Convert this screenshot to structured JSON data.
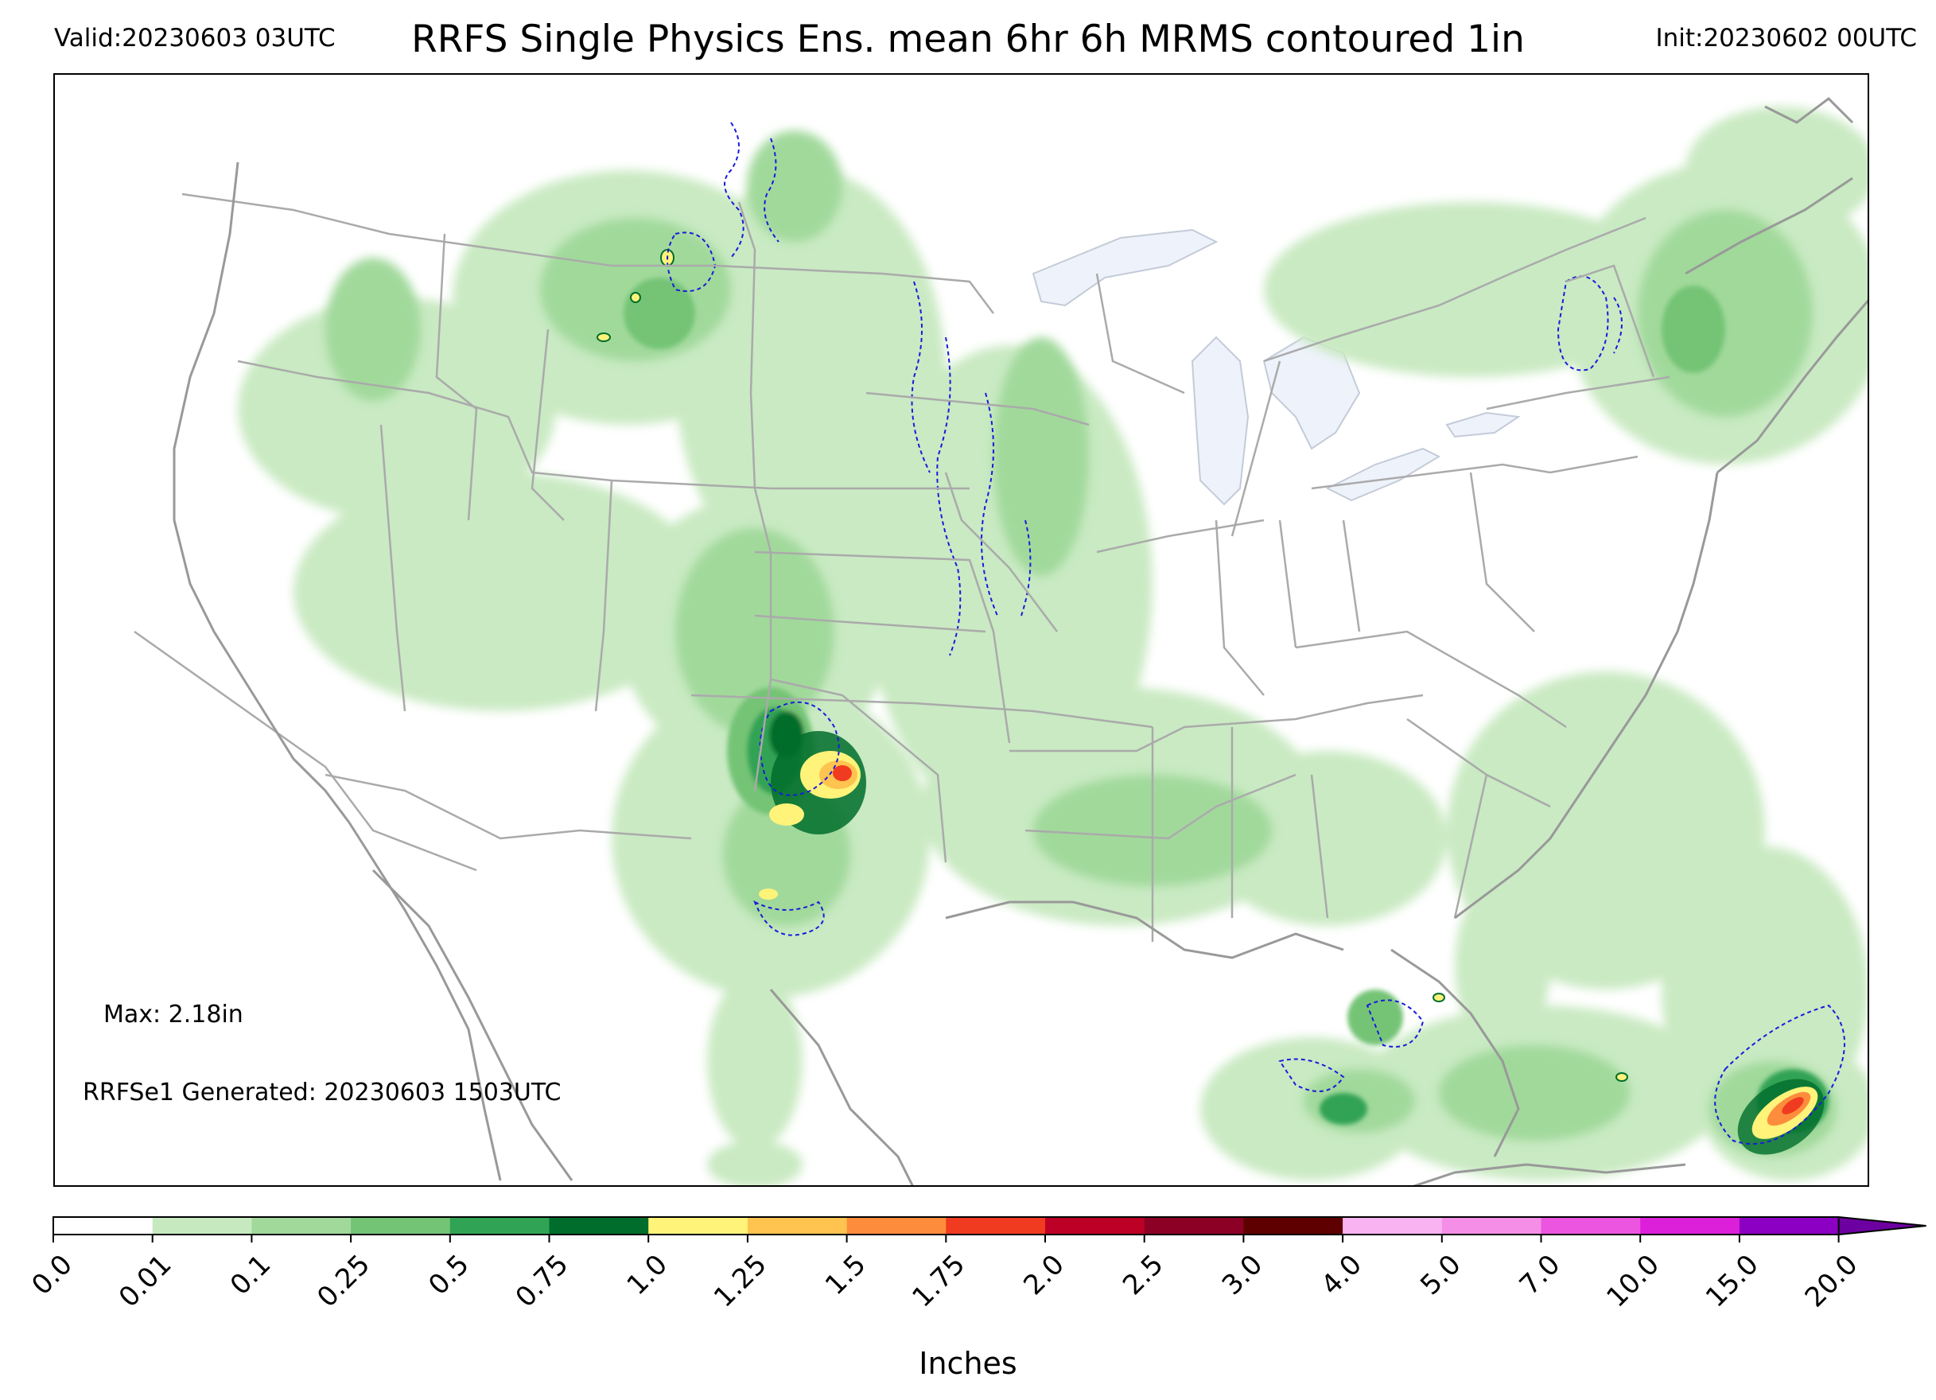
{
  "header": {
    "valid": "Valid:20230603 03UTC",
    "title": "RRFS Single Physics Ens. mean 6hr 6h MRMS contoured 1in",
    "init": "Init:20230602 00UTC"
  },
  "annotations": {
    "max": "Max: 2.18in",
    "generated": "RRFSe1 Generated: 20230603 1503UTC"
  },
  "colorbar": {
    "label": "Inches",
    "ticks": [
      "0.0",
      "0.01",
      "0.1",
      "0.25",
      "0.5",
      "0.75",
      "1.0",
      "1.25",
      "1.5",
      "1.75",
      "2.0",
      "2.5",
      "3.0",
      "4.0",
      "5.0",
      "7.0",
      "10.0",
      "15.0",
      "20.0"
    ],
    "colors": [
      "#ffffff",
      "#c7e9c0",
      "#a1d99b",
      "#74c476",
      "#31a354",
      "#006d2c",
      "#fff37a",
      "#fec44f",
      "#fd8d3c",
      "#f03b20",
      "#bd0026",
      "#8c0025",
      "#5e0000",
      "#f9b3f0",
      "#f58ee6",
      "#ec55e0",
      "#dc1fd8",
      "#8b00c2"
    ],
    "extend_color": "#6d00a0"
  },
  "map": {
    "land_color": "#ffffff",
    "border_color": "#aaaaaa",
    "lake_color": "#eef2fa",
    "contour_color": "#1a1adc"
  }
}
